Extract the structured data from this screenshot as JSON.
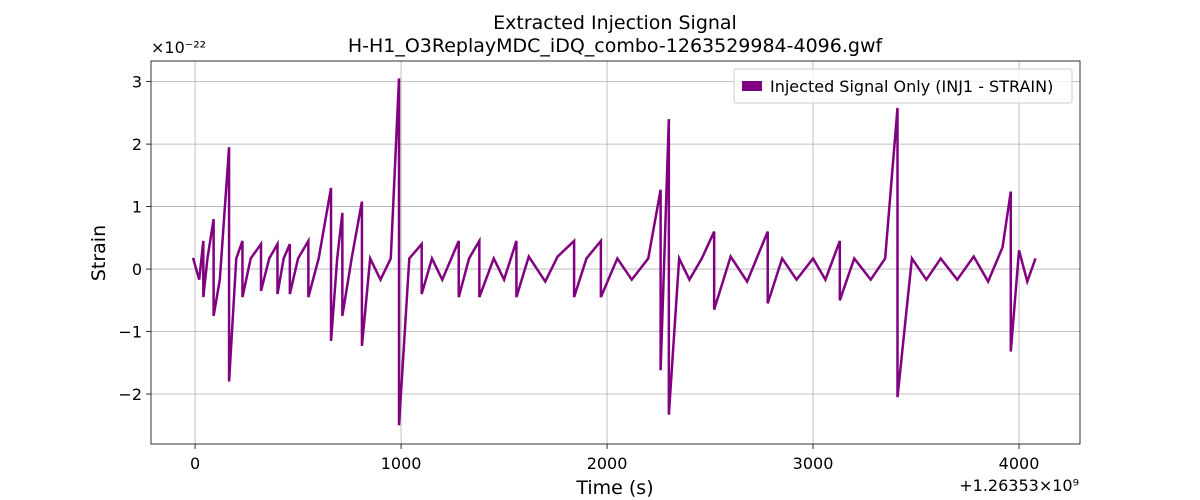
{
  "chart_data": {
    "type": "line",
    "title": "Extracted Injection Signal",
    "subtitle": "H-H1_O3ReplayMDC_iDQ_combo-1263529984-4096.gwf",
    "xlabel": "Time (s)",
    "ylabel": "Strain",
    "x_offset_label": "+1.26353×10⁹",
    "y_scale_label": "×10⁻²²",
    "xlim": [
      -214,
      4296
    ],
    "ylim": [
      -2.8,
      3.33
    ],
    "xticks": [
      0,
      1000,
      2000,
      3000,
      4000
    ],
    "yticks": [
      {
        "value": -2,
        "label": "−2"
      },
      {
        "value": -1,
        "label": "−1"
      },
      0,
      1,
      2,
      3
    ],
    "grid": true,
    "legend": "upper right",
    "x": [
      -10,
      20,
      40,
      40,
      60,
      90,
      90,
      120,
      165,
      165,
      200,
      230,
      230,
      270,
      320,
      320,
      360,
      400,
      400,
      430,
      460,
      460,
      500,
      550,
      550,
      600,
      660,
      660,
      690,
      715,
      715,
      760,
      810,
      810,
      850,
      900,
      950,
      990,
      990,
      1040,
      1100,
      1100,
      1150,
      1200,
      1280,
      1280,
      1330,
      1380,
      1380,
      1450,
      1500,
      1560,
      1560,
      1620,
      1700,
      1760,
      1840,
      1840,
      1900,
      1970,
      1970,
      2050,
      2120,
      2200,
      2260,
      2260,
      2300,
      2300,
      2350,
      2400,
      2460,
      2520,
      2520,
      2600,
      2680,
      2780,
      2780,
      2850,
      2920,
      3000,
      3060,
      3130,
      3130,
      3200,
      3280,
      3350,
      3410,
      3410,
      3480,
      3550,
      3620,
      3700,
      3780,
      3850,
      3920,
      3960,
      3960,
      4000,
      4040,
      4080
    ],
    "series": [
      {
        "name": "Injected Signal Only (INJ1 - STRAIN)",
        "color": "#800080",
        "values": [
          0.18,
          -0.17,
          0.45,
          -0.45,
          0.17,
          0.8,
          -0.75,
          -0.17,
          1.95,
          -1.8,
          0.17,
          0.45,
          -0.45,
          0.17,
          0.4,
          -0.35,
          0.17,
          0.4,
          -0.4,
          0.17,
          0.4,
          -0.4,
          0.17,
          0.45,
          -0.45,
          0.17,
          1.3,
          -1.15,
          0.17,
          0.9,
          -0.75,
          0.17,
          1.08,
          -1.23,
          0.17,
          -0.17,
          0.17,
          3.05,
          -2.5,
          0.17,
          0.4,
          -0.4,
          0.17,
          -0.17,
          0.45,
          -0.45,
          0.17,
          0.45,
          -0.45,
          0.17,
          -0.17,
          0.45,
          -0.45,
          0.2,
          -0.2,
          0.2,
          0.45,
          -0.45,
          0.17,
          0.45,
          -0.45,
          0.17,
          -0.17,
          0.17,
          1.27,
          -1.62,
          2.4,
          -2.33,
          0.17,
          -0.17,
          0.17,
          0.6,
          -0.65,
          0.2,
          -0.2,
          0.6,
          -0.55,
          0.17,
          -0.17,
          0.17,
          -0.17,
          0.45,
          -0.5,
          0.17,
          -0.17,
          0.17,
          2.58,
          -2.05,
          0.17,
          -0.17,
          0.17,
          -0.17,
          0.2,
          -0.2,
          0.35,
          1.24,
          -1.32,
          0.3,
          -0.2,
          0.17
        ]
      }
    ]
  }
}
